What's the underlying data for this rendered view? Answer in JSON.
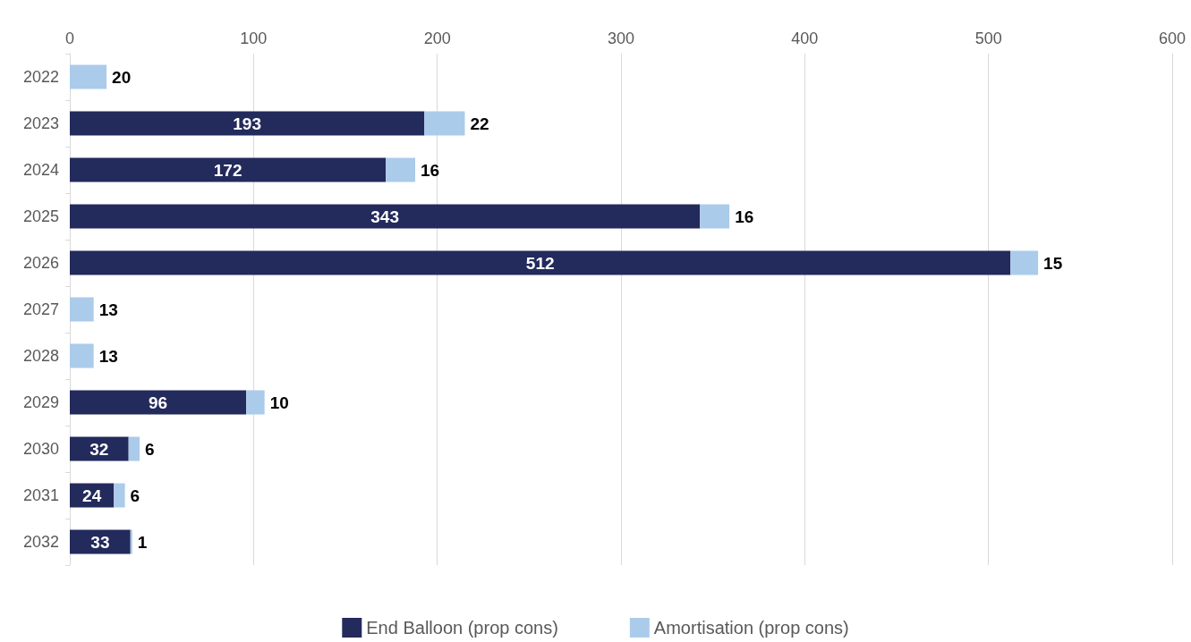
{
  "chart_data": {
    "type": "bar",
    "orientation": "horizontal",
    "stacked": true,
    "categories": [
      "2022",
      "2023",
      "2024",
      "2025",
      "2026",
      "2027",
      "2028",
      "2029",
      "2030",
      "2031",
      "2032"
    ],
    "series": [
      {
        "name": "End Balloon (prop cons)",
        "color": "#232a5c",
        "values": [
          null,
          193,
          172,
          343,
          512,
          null,
          null,
          96,
          32,
          24,
          33
        ]
      },
      {
        "name": "Amortisation (prop cons)",
        "color": "#abcbeb",
        "values": [
          20,
          22,
          16,
          16,
          15,
          13,
          13,
          10,
          6,
          6,
          1
        ]
      }
    ],
    "xlim": [
      0,
      600
    ],
    "xticks": [
      0,
      100,
      200,
      300,
      400,
      500,
      600
    ],
    "grid": "x",
    "legend": "bottom",
    "data_labels": true
  }
}
